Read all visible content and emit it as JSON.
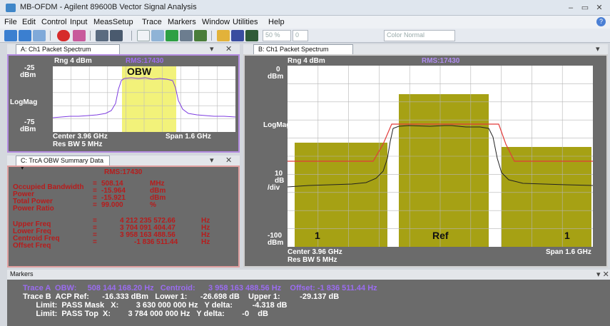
{
  "window": {
    "title": "MB-OFDM - Agilent 89600B Vector Signal Analysis"
  },
  "menu": [
    "File",
    "Edit",
    "Control",
    "Input",
    "MeasSetup",
    "Trace",
    "Markers",
    "Window",
    "Utilities",
    "Help"
  ],
  "toolbar": {
    "zoom_value": "50 %",
    "zoom_extra": "0",
    "color_scheme": "Color Normal"
  },
  "traceA": {
    "tab": "A: Ch1 Packet Spectrum",
    "range": "Rng 4 dBm",
    "rms": "RMS:17430",
    "top_ref": "-25",
    "top_unit": "dBm",
    "scale": "LogMag",
    "bottom_ref": "-75",
    "bottom_unit": "dBm",
    "obw_label": "OBW",
    "center": "Center 3.96 GHz",
    "span": "Span 1.6 GHz",
    "rbw": "Res BW 5 MHz"
  },
  "traceB": {
    "tab": "B: Ch1 Packet Spectrum",
    "range": "Rng 4 dBm",
    "rms": "RMS:17430",
    "top_ref": "0",
    "top_unit": "dBm",
    "scale": "LogMag",
    "div_value": "10",
    "div_unit": "dB",
    "div_label": "/div",
    "bottom_ref": "-100",
    "bottom_unit": "dBm",
    "center": "Center 3.96 GHz",
    "span": "Span 1.6 GHz",
    "rbw": "Res BW 5 MHz",
    "bar_labels": [
      "1",
      "Ref",
      "1"
    ]
  },
  "traceC": {
    "tab": "C: TrcA OBW Summary Data",
    "rms": "RMS:17430",
    "rows": [
      {
        "label": "Occupied Bandwidth",
        "eq": "=",
        "value": "508.14",
        "unit": "MHz"
      },
      {
        "label": "Power",
        "eq": "=",
        "value": "-15.964",
        "unit": "dBm"
      },
      {
        "label": "Total Power",
        "eq": "=",
        "value": "-15.921",
        "unit": "dBm"
      },
      {
        "label": "Power Ratio",
        "eq": "=",
        "value": "99.000",
        "unit": "%"
      }
    ],
    "freq_rows": [
      {
        "label": "Upper Freq",
        "eq": "=",
        "value": "4 212 235 572.66",
        "unit": "Hz"
      },
      {
        "label": "Lower Freq",
        "eq": "=",
        "value": "3 704 091 404.47",
        "unit": "Hz"
      },
      {
        "label": "Centroid Freq",
        "eq": "=",
        "value": "3 958 163 488.56",
        "unit": "Hz"
      },
      {
        "label": "Offset Freq",
        "eq": "=",
        "value": "-1 836 511.44",
        "unit": "Hz"
      }
    ]
  },
  "markers": {
    "header": "Markers",
    "lines": [
      "Trace A  OBW:     508 144 168.20 Hz   Centroid:      3 958 163 488.56 Hz    Offset: -1 836 511.44 Hz",
      "Trace B  ACP Ref:      -16.333 dBm   Lower 1:      -26.698 dB    Upper 1:         -29.137 dB",
      "      Limit:  PASS Mask   X:        3 630 000 000 Hz   Y delta:         -4.318 dB",
      "      Limit:  PASS Top  X:        3 784 000 000 Hz   Y delta:        -0    dB"
    ]
  },
  "colors": {
    "trace_purple": "#9b59e8",
    "obw_fill": "#f2f27a",
    "bar_olive": "#a6a114",
    "mask_red": "#e23b3b",
    "summary_red": "#b71c1c"
  }
}
